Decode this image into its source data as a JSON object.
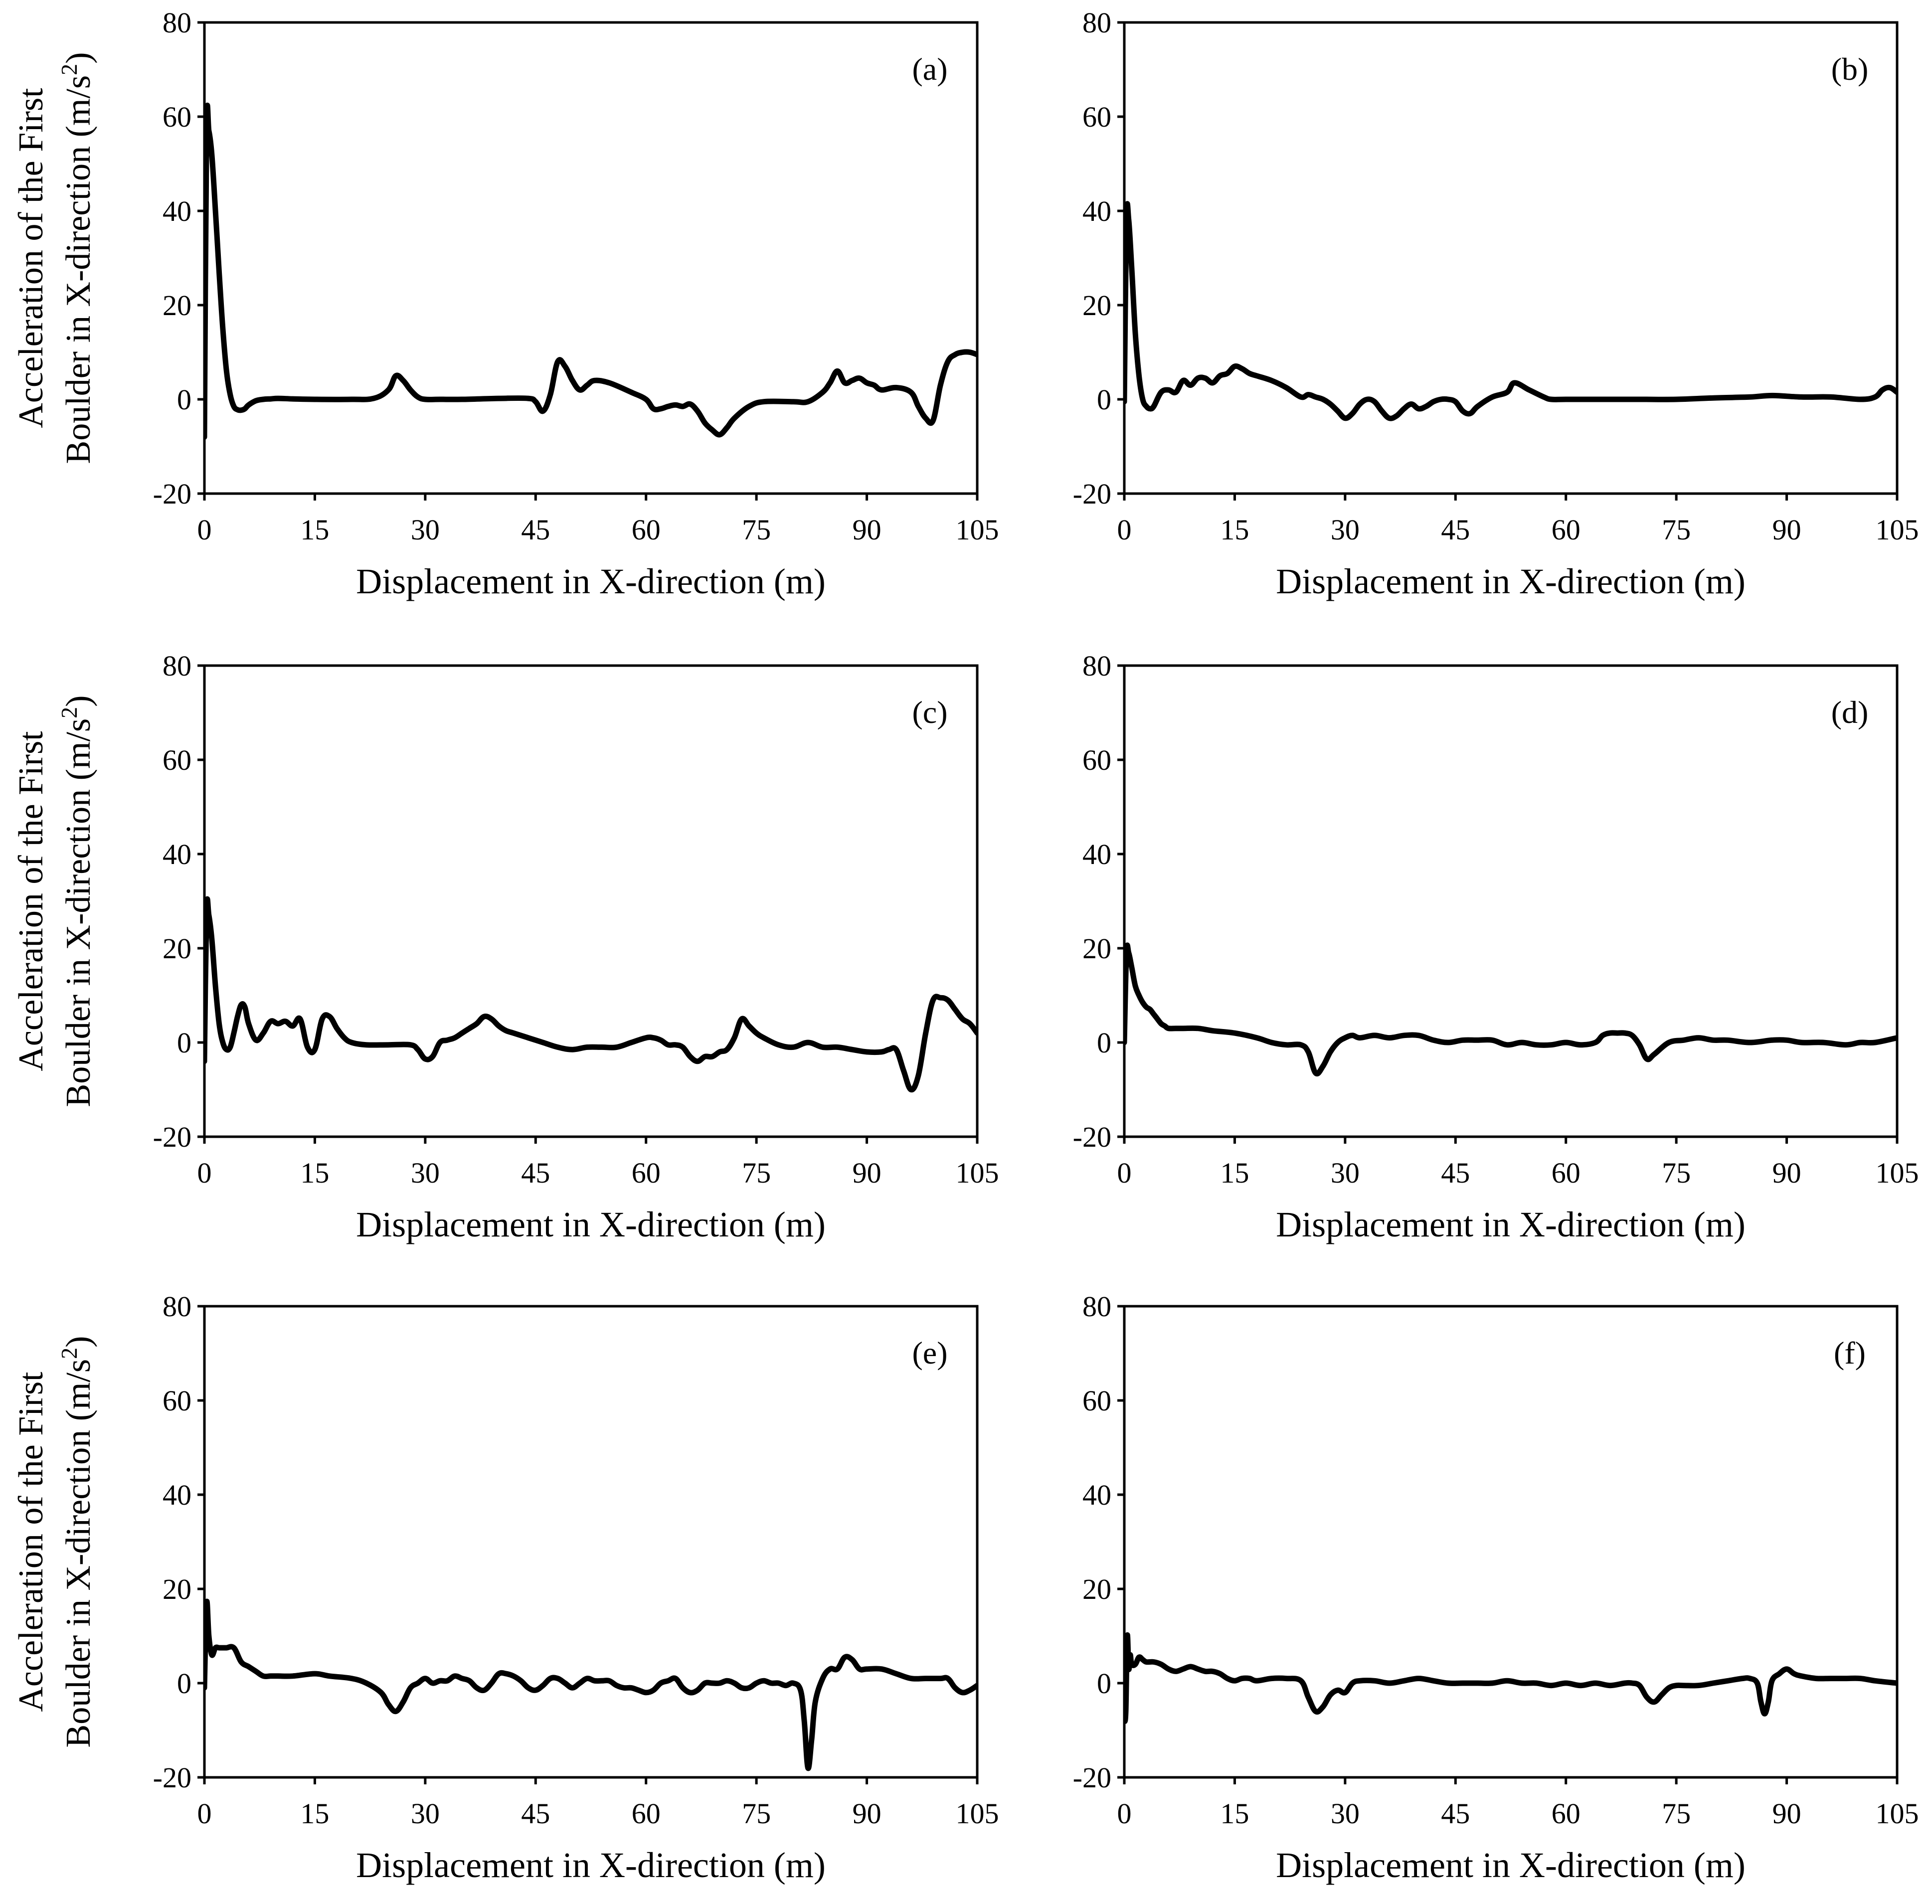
{
  "figure": {
    "ylabel_line1": "Acceleration of the First",
    "ylabel_line2_main": "Boulder in X-direction (m/s",
    "ylabel_line2_sup": "2",
    "ylabel_line2_end": ")"
  },
  "chart_data": [
    {
      "type": "line",
      "panel_label": "(a)",
      "xlabel": "Displacement in X-direction (m)",
      "ylabel": "Acceleration of the First Boulder in X-direction (m/s2)",
      "xlim": [
        0,
        105
      ],
      "ylim": [
        -20,
        80
      ],
      "xticks": [
        0,
        15,
        30,
        45,
        60,
        75,
        90,
        105
      ],
      "yticks": [
        -20,
        0,
        20,
        40,
        60,
        80
      ],
      "grid": false,
      "series": [
        {
          "x": [
            0,
            0.3,
            0.6,
            1,
            1.5,
            2,
            2.5,
            3,
            3.5,
            4,
            4.5,
            5,
            5.5,
            6,
            7,
            8,
            9,
            10,
            12,
            15,
            20,
            23,
            25,
            26,
            27,
            28,
            29,
            30,
            32,
            35,
            40,
            44,
            45,
            46,
            47,
            48,
            49,
            50,
            51,
            52,
            53,
            55,
            58,
            60,
            61,
            62,
            63,
            64,
            65,
            66,
            67,
            68,
            69,
            70,
            71,
            72,
            74,
            76,
            80,
            82,
            84,
            85,
            86,
            87,
            88,
            89,
            90,
            91,
            92,
            94,
            96,
            97,
            98,
            99,
            100,
            101,
            102,
            103,
            104,
            105
          ],
          "y": [
            -8,
            57,
            57,
            52,
            40,
            27,
            15,
            6,
            1,
            -1.5,
            -2.2,
            -2.3,
            -2,
            -1.2,
            -0.3,
            0,
            0.1,
            0.2,
            0.1,
            0,
            0,
            0.2,
            2,
            5,
            4,
            2,
            0.5,
            0,
            0,
            0,
            0.2,
            0.2,
            -0.5,
            -2.5,
            1,
            8,
            7,
            4,
            2,
            3,
            4,
            3.5,
            1.5,
            0,
            -2,
            -2,
            -1.5,
            -1.2,
            -1.5,
            -1,
            -2.5,
            -5,
            -6.5,
            -7.5,
            -6,
            -4,
            -1.5,
            -0.5,
            -0.5,
            -0.5,
            1.5,
            3.5,
            6,
            3.5,
            4,
            4.5,
            3.5,
            3,
            2,
            2.5,
            1.5,
            -1.5,
            -4,
            -4.5,
            3,
            8,
            9.5,
            10,
            10,
            9.5
          ]
        }
      ]
    },
    {
      "type": "line",
      "panel_label": "(b)",
      "xlabel": "Displacement in X-direction (m)",
      "xlim": [
        0,
        105
      ],
      "ylim": [
        -20,
        80
      ],
      "xticks": [
        0,
        15,
        30,
        45,
        60,
        75,
        90,
        105
      ],
      "yticks": [
        -20,
        0,
        20,
        40,
        60,
        80
      ],
      "grid": false,
      "series": [
        {
          "x": [
            0,
            0.3,
            0.6,
            1,
            1.5,
            2,
            2.5,
            3,
            3.5,
            4,
            5,
            6,
            7,
            8,
            9,
            10,
            11,
            12,
            13,
            14,
            15,
            16,
            17,
            18,
            20,
            22,
            24,
            25,
            26,
            27,
            28,
            29,
            30,
            31,
            32,
            33,
            34,
            35,
            36,
            37,
            38,
            39,
            40,
            41,
            42,
            43,
            44,
            45,
            46,
            47,
            48,
            50,
            52,
            53,
            55,
            57,
            58,
            60,
            65,
            70,
            75,
            80,
            85,
            88,
            92,
            96,
            100,
            102,
            103,
            104,
            105
          ],
          "y": [
            -0.5,
            38,
            38,
            28,
            14,
            5,
            0,
            -1.5,
            -2,
            -1.5,
            1.5,
            2,
            1.5,
            4,
            3,
            4.5,
            4.5,
            3.5,
            5,
            5.5,
            7,
            6.5,
            5.5,
            5,
            4,
            2.5,
            0.5,
            1,
            0.5,
            0,
            -1,
            -2.5,
            -4,
            -3,
            -1,
            0,
            -0.5,
            -2.5,
            -4,
            -3.5,
            -2,
            -1,
            -2,
            -1.5,
            -0.5,
            0,
            0,
            -0.5,
            -2.5,
            -3,
            -1.5,
            0.5,
            1.5,
            3.5,
            2,
            0.5,
            0,
            0,
            0,
            0,
            0,
            0.3,
            0.5,
            0.8,
            0.5,
            0.5,
            0,
            0.5,
            2,
            2.5,
            1.5
          ]
        }
      ]
    },
    {
      "type": "line",
      "panel_label": "(c)",
      "xlabel": "Displacement in X-direction (m)",
      "ylabel": "Acceleration of the First Boulder in X-direction (m/s2)",
      "xlim": [
        0,
        105
      ],
      "ylim": [
        -20,
        80
      ],
      "xticks": [
        0,
        15,
        30,
        45,
        60,
        75,
        90,
        105
      ],
      "yticks": [
        -20,
        0,
        20,
        40,
        60,
        80
      ],
      "grid": false,
      "series": [
        {
          "x": [
            0,
            0.3,
            0.6,
            1,
            1.5,
            2,
            2.5,
            3,
            3.5,
            4,
            4.5,
            5,
            5.5,
            6,
            7,
            8,
            9,
            10,
            11,
            12,
            13,
            14,
            15,
            16,
            17,
            18,
            19,
            20,
            22,
            25,
            28,
            29,
            30,
            31,
            32,
            33,
            34,
            35,
            36,
            37,
            38,
            39,
            40,
            41,
            42,
            44,
            46,
            48,
            50,
            52,
            54,
            56,
            58,
            60,
            61,
            62,
            63,
            64,
            65,
            66,
            67,
            68,
            69,
            70,
            71,
            72,
            73,
            74,
            75,
            76,
            78,
            80,
            82,
            84,
            86,
            88,
            90,
            92,
            93,
            94,
            95,
            96,
            97,
            98,
            99,
            100,
            101,
            102,
            103,
            104,
            105
          ],
          "y": [
            -4,
            28,
            27,
            22,
            12,
            4,
            0,
            -1.5,
            -1,
            2,
            5.5,
            8,
            7.5,
            4,
            0.5,
            2,
            4.5,
            4,
            4.5,
            3.5,
            5,
            -1,
            -1.5,
            5,
            5.5,
            3,
            1,
            0,
            -0.5,
            -0.5,
            -0.5,
            -1.5,
            -3.5,
            -3,
            0,
            0.5,
            1,
            2,
            3,
            4,
            5.5,
            5,
            3.5,
            2.5,
            2,
            1,
            0,
            -1,
            -1.5,
            -1,
            -1,
            -1,
            0,
            1,
            1,
            0.5,
            -0.5,
            -0.5,
            -1,
            -3,
            -4,
            -3,
            -3,
            -2,
            -1.5,
            1,
            5,
            3.5,
            2,
            1,
            -0.5,
            -1,
            0,
            -1,
            -1,
            -1.5,
            -2,
            -2,
            -1.5,
            -1.5,
            -6,
            -10,
            -7,
            2,
            9,
            9.5,
            9,
            7,
            5,
            4,
            2
          ]
        }
      ]
    },
    {
      "type": "line",
      "panel_label": "(d)",
      "xlabel": "Displacement in X-direction (m)",
      "xlim": [
        0,
        105
      ],
      "ylim": [
        -20,
        80
      ],
      "xticks": [
        0,
        15,
        30,
        45,
        60,
        75,
        90,
        105
      ],
      "yticks": [
        -20,
        0,
        20,
        40,
        60,
        80
      ],
      "grid": false,
      "series": [
        {
          "x": [
            0,
            0.3,
            0.6,
            1,
            1.5,
            2,
            2.5,
            3,
            3.5,
            4,
            4.5,
            5,
            5.5,
            6,
            7,
            8,
            10,
            12,
            15,
            18,
            20,
            22,
            24,
            25,
            26,
            27,
            28,
            29,
            30,
            31,
            32,
            34,
            36,
            38,
            40,
            42,
            44,
            46,
            48,
            50,
            52,
            54,
            56,
            58,
            60,
            62,
            64,
            65,
            66,
            67,
            68,
            69,
            70,
            71,
            72,
            74,
            76,
            78,
            80,
            82,
            85,
            88,
            90,
            92,
            95,
            98,
            100,
            102,
            105
          ],
          "y": [
            0,
            19,
            19,
            16,
            12,
            10,
            8.5,
            7.5,
            7,
            6,
            5,
            4,
            3.5,
            3,
            3,
            3,
            3,
            2.5,
            2,
            1,
            0,
            -0.5,
            -0.5,
            -2,
            -6.5,
            -5,
            -2,
            0,
            1,
            1.5,
            1,
            1.5,
            1,
            1.5,
            1.5,
            0.5,
            0,
            0.5,
            0.5,
            0.5,
            -0.5,
            0,
            -0.5,
            -0.5,
            0,
            -0.5,
            0,
            1.5,
            2,
            2,
            2,
            1.5,
            -0.5,
            -3.5,
            -2.5,
            0,
            0.5,
            1,
            0.5,
            0.5,
            0,
            0.5,
            0.5,
            0,
            0,
            -0.5,
            0,
            0,
            1
          ]
        }
      ]
    },
    {
      "type": "line",
      "panel_label": "(e)",
      "xlabel": "Displacement in X-direction (m)",
      "ylabel": "Acceleration of the First Boulder in X-direction (m/s2)",
      "xlim": [
        0,
        105
      ],
      "ylim": [
        -20,
        80
      ],
      "xticks": [
        0,
        15,
        30,
        45,
        60,
        75,
        90,
        105
      ],
      "yticks": [
        -20,
        0,
        20,
        40,
        60,
        80
      ],
      "grid": false,
      "series": [
        {
          "x": [
            0,
            0.3,
            0.6,
            1,
            1.5,
            2,
            2.5,
            3,
            4,
            5,
            6,
            7,
            8,
            9,
            10,
            12,
            15,
            17,
            20,
            22,
            24,
            25,
            26,
            27,
            28,
            29,
            30,
            31,
            32,
            33,
            34,
            35,
            36,
            37,
            38,
            39,
            40,
            41,
            42,
            43,
            44,
            45,
            46,
            47,
            48,
            49,
            50,
            51,
            52,
            53,
            54,
            55,
            56,
            57,
            58,
            59,
            60,
            61,
            62,
            63,
            64,
            65,
            66,
            67,
            68,
            69,
            70,
            71,
            72,
            73,
            74,
            75,
            76,
            77,
            78,
            79,
            80,
            81,
            81.5,
            82,
            82.5,
            83,
            84,
            85,
            86,
            87,
            88,
            89,
            90,
            92,
            94,
            96,
            98,
            100,
            101,
            102,
            103,
            104,
            105
          ],
          "y": [
            -1,
            17,
            10,
            6,
            7.5,
            7.5,
            7.5,
            7.5,
            7.5,
            4.5,
            3.5,
            2.5,
            1.5,
            1.5,
            1.5,
            1.5,
            2,
            1.5,
            1,
            0,
            -2,
            -4.5,
            -6,
            -4,
            -1,
            0,
            1,
            0,
            0.5,
            0.5,
            1.5,
            1,
            0.5,
            -1,
            -1.5,
            0,
            2,
            2,
            1.5,
            0.5,
            -1,
            -1.5,
            -0.5,
            1,
            1,
            0,
            -1,
            0,
            1,
            0.5,
            0.5,
            0.5,
            -0.5,
            -1,
            -1,
            -1.5,
            -2,
            -1.5,
            0,
            0.5,
            1,
            -1,
            -2,
            -1.5,
            0,
            0,
            0,
            0.5,
            0,
            -1,
            -1,
            0,
            0.5,
            0,
            0,
            -0.5,
            0,
            -1.5,
            -8,
            -18,
            -12,
            -4,
            1,
            3,
            3,
            5.5,
            5,
            3,
            3,
            3,
            2,
            1,
            1,
            1,
            1,
            -1,
            -2,
            -1.5,
            -0.5
          ]
        }
      ]
    },
    {
      "type": "line",
      "panel_label": "(f)",
      "xlabel": "Displacement in X-direction (m)",
      "xlim": [
        0,
        105
      ],
      "ylim": [
        -20,
        80
      ],
      "xticks": [
        0,
        15,
        30,
        45,
        60,
        75,
        90,
        105
      ],
      "yticks": [
        -20,
        0,
        20,
        40,
        60,
        80
      ],
      "grid": false,
      "series": [
        {
          "x": [
            0,
            0.2,
            0.4,
            0.6,
            0.8,
            1,
            1.5,
            2,
            2.5,
            3,
            4,
            5,
            6,
            7,
            8,
            9,
            10,
            11,
            12,
            13,
            14,
            15,
            16,
            17,
            18,
            20,
            22,
            24,
            25,
            26,
            27,
            28,
            29,
            30,
            31,
            32,
            34,
            36,
            38,
            40,
            42,
            44,
            46,
            48,
            50,
            52,
            54,
            56,
            58,
            60,
            62,
            64,
            66,
            68,
            69,
            70,
            71,
            72,
            73,
            74,
            75,
            76,
            78,
            80,
            82,
            84,
            85,
            86,
            86.5,
            87,
            87.5,
            88,
            89,
            90,
            91,
            92,
            94,
            96,
            98,
            100,
            102,
            105
          ],
          "y": [
            -8,
            -6,
            10,
            3,
            6,
            4,
            4,
            5.5,
            5,
            4.5,
            4.5,
            4,
            3,
            2.5,
            3,
            3.5,
            3,
            2.5,
            2.5,
            2,
            1,
            0.5,
            1,
            1,
            0.5,
            1,
            1,
            0.5,
            -3,
            -6,
            -5,
            -2.5,
            -1.5,
            -2,
            0,
            0.5,
            0.5,
            0,
            0.5,
            1,
            0.5,
            0,
            0,
            0,
            0,
            0.5,
            0,
            0,
            -0.5,
            0,
            -0.5,
            0,
            -0.5,
            0,
            0,
            -0.5,
            -3,
            -4,
            -2.5,
            -1,
            -0.5,
            -0.5,
            -0.5,
            0,
            0.5,
            1,
            1,
            0,
            -4,
            -6.5,
            -4,
            0.5,
            2,
            3,
            2,
            1.5,
            1,
            1,
            1,
            1,
            0.5,
            0
          ]
        }
      ]
    }
  ]
}
